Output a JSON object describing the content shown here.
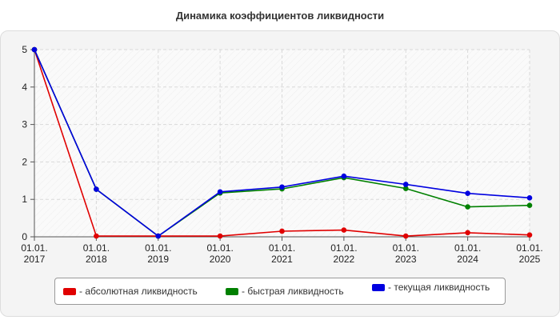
{
  "chart_data": {
    "type": "line",
    "title": "Динамика коэффициентов ликвидности",
    "categories": [
      "01.01.\n2017",
      "01.01.\n2018",
      "01.01.\n2019",
      "01.01.\n2020",
      "01.01.\n2021",
      "01.01.\n2022",
      "01.01.\n2023",
      "01.01.\n2024",
      "01.01.\n2025"
    ],
    "series": [
      {
        "name": "- абсолютная ликвидность",
        "color": "#e00000",
        "values": [
          5.0,
          0.02,
          0.02,
          0.02,
          0.15,
          0.18,
          0.02,
          0.11,
          0.05
        ]
      },
      {
        "name": "- быстрая ликвидность",
        "color": "#008000",
        "values": [
          5.0,
          1.27,
          0.02,
          1.17,
          1.28,
          1.58,
          1.29,
          0.8,
          0.84
        ]
      },
      {
        "name": "- текущая ликвидность",
        "color": "#0000e0",
        "values": [
          5.0,
          1.27,
          0.02,
          1.2,
          1.33,
          1.62,
          1.4,
          1.16,
          1.04
        ]
      }
    ],
    "ylim": [
      0,
      5
    ],
    "yticks": [
      0,
      1,
      2,
      3,
      4,
      5
    ],
    "grid": true,
    "legend": "bottom"
  }
}
